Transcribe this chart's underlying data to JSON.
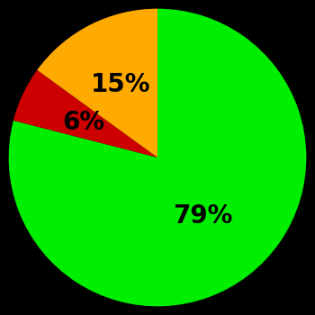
{
  "slices": [
    79,
    6,
    15
  ],
  "labels": [
    "79%",
    "6%",
    "15%"
  ],
  "colors": [
    "#00ee00",
    "#cc0000",
    "#ffaa00"
  ],
  "background_color": "#000000",
  "startangle": 90,
  "counterclock": false,
  "figsize": [
    3.5,
    3.5
  ],
  "dpi": 100,
  "label_fontsize": 20,
  "label_fontweight": "bold",
  "label_radii": [
    0.5,
    0.55,
    0.55
  ]
}
